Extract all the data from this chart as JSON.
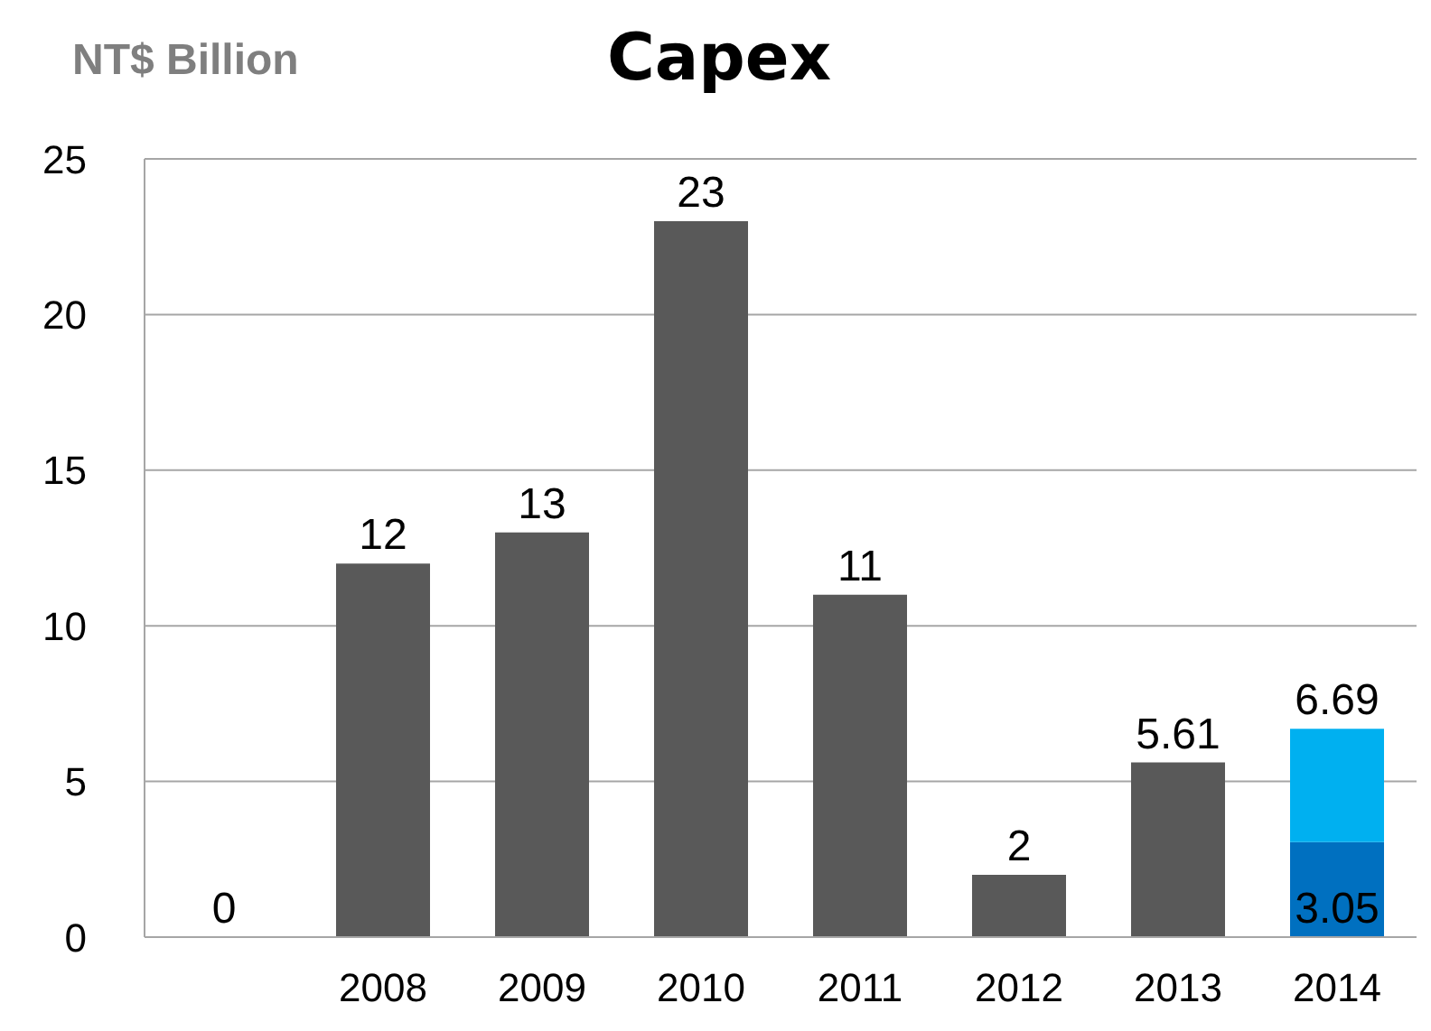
{
  "chart_data": {
    "type": "bar",
    "title": "Capex",
    "ylabel": "NT$ Billion",
    "categories": [
      null,
      "2008",
      "2009",
      "2010",
      "2011",
      "2012",
      "2013",
      "2014"
    ],
    "stacked": true,
    "series": [
      {
        "color": "#595959",
        "colors": [
          "#595959",
          "#595959",
          "#595959",
          "#595959",
          "#595959",
          "#595959",
          "#595959",
          "#0070c0"
        ],
        "values": [
          0,
          12,
          13,
          23,
          11,
          2,
          5.61,
          3.05
        ],
        "value_labels": [
          "0",
          "12",
          "13",
          "23",
          "11",
          "2",
          "5.61",
          "3.05"
        ]
      },
      {
        "color": "#00b0f0",
        "values": [
          null,
          null,
          null,
          null,
          null,
          null,
          null,
          3.64
        ]
      }
    ],
    "totals": [
      null,
      null,
      null,
      null,
      null,
      null,
      null,
      "6.69"
    ],
    "ylim": [
      0,
      25
    ],
    "yticks": [
      0,
      5,
      10,
      15,
      20,
      25
    ],
    "grid": "y"
  }
}
